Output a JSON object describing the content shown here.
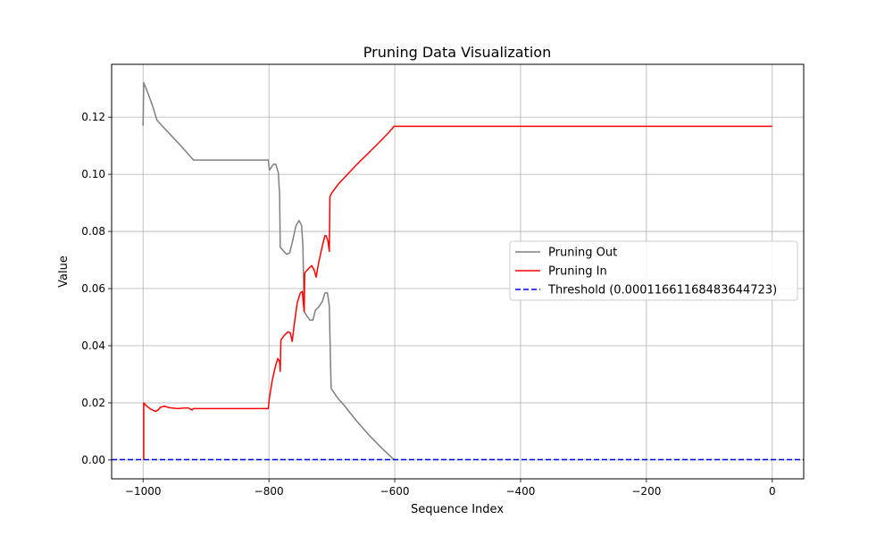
{
  "chart_data": {
    "type": "line",
    "title": "Pruning Data Visualization",
    "xlabel": "Sequence Index",
    "ylabel": "Value",
    "xlim": [
      -1050,
      50
    ],
    "ylim": [
      -0.0066,
      0.1385
    ],
    "x_ticks": [
      -1000,
      -800,
      -600,
      -400,
      -200,
      0
    ],
    "x_tick_labels": [
      "−1000",
      "−800",
      "−600",
      "−400",
      "−200",
      "0"
    ],
    "y_ticks": [
      0.0,
      0.02,
      0.04,
      0.06,
      0.08,
      0.1,
      0.12
    ],
    "y_tick_labels": [
      "0.00",
      "0.02",
      "0.04",
      "0.06",
      "0.08",
      "0.10",
      "0.12"
    ],
    "grid": true,
    "legend_position": "center-right",
    "series": [
      {
        "name": "Pruning Out",
        "color": "#808080",
        "dash": "solid",
        "points": [
          [
            -1000,
            0.117
          ],
          [
            -999,
            0.132
          ],
          [
            -995,
            0.13
          ],
          [
            -985,
            0.124
          ],
          [
            -978,
            0.119
          ],
          [
            -970,
            0.117
          ],
          [
            -955,
            0.1135
          ],
          [
            -940,
            0.11
          ],
          [
            -930,
            0.1075
          ],
          [
            -920,
            0.105
          ],
          [
            -900,
            0.105
          ],
          [
            -850,
            0.105
          ],
          [
            -801,
            0.105
          ],
          [
            -799,
            0.1015
          ],
          [
            -793,
            0.1035
          ],
          [
            -789,
            0.1035
          ],
          [
            -785,
            0.1005
          ],
          [
            -783,
            0.093
          ],
          [
            -782,
            0.0745
          ],
          [
            -778,
            0.0735
          ],
          [
            -772,
            0.072
          ],
          [
            -767,
            0.0725
          ],
          [
            -762,
            0.077
          ],
          [
            -757,
            0.082
          ],
          [
            -752,
            0.0838
          ],
          [
            -748,
            0.082
          ],
          [
            -746,
            0.075
          ],
          [
            -744,
            0.052
          ],
          [
            -740,
            0.0505
          ],
          [
            -735,
            0.049
          ],
          [
            -730,
            0.049
          ],
          [
            -726,
            0.0525
          ],
          [
            -721,
            0.0535
          ],
          [
            -715,
            0.0555
          ],
          [
            -711,
            0.0585
          ],
          [
            -707,
            0.0585
          ],
          [
            -704,
            0.054
          ],
          [
            -702,
            0.033
          ],
          [
            -701,
            0.025
          ],
          [
            -690,
            0.0215
          ],
          [
            -680,
            0.019
          ],
          [
            -660,
            0.0135
          ],
          [
            -640,
            0.0085
          ],
          [
            -620,
            0.004
          ],
          [
            -602,
            0.0003
          ],
          [
            -600,
            0.0
          ]
        ]
      },
      {
        "name": "Pruning In",
        "color": "#ff0000",
        "dash": "solid",
        "points": [
          [
            -999,
            0.0
          ],
          [
            -999,
            0.02
          ],
          [
            -995,
            0.019
          ],
          [
            -988,
            0.0178
          ],
          [
            -980,
            0.017
          ],
          [
            -976,
            0.0175
          ],
          [
            -972,
            0.0185
          ],
          [
            -966,
            0.0188
          ],
          [
            -958,
            0.0183
          ],
          [
            -945,
            0.018
          ],
          [
            -935,
            0.0182
          ],
          [
            -928,
            0.0182
          ],
          [
            -922,
            0.0175
          ],
          [
            -920,
            0.018
          ],
          [
            -900,
            0.018
          ],
          [
            -850,
            0.018
          ],
          [
            -801,
            0.018
          ],
          [
            -799,
            0.022
          ],
          [
            -795,
            0.0275
          ],
          [
            -790,
            0.0325
          ],
          [
            -786,
            0.0355
          ],
          [
            -783,
            0.0345
          ],
          [
            -782,
            0.031
          ],
          [
            -781,
            0.042
          ],
          [
            -776,
            0.0435
          ],
          [
            -770,
            0.0448
          ],
          [
            -766,
            0.0445
          ],
          [
            -763,
            0.0415
          ],
          [
            -760,
            0.047
          ],
          [
            -755,
            0.055
          ],
          [
            -750,
            0.0585
          ],
          [
            -747,
            0.059
          ],
          [
            -744,
            0.052
          ],
          [
            -743,
            0.0655
          ],
          [
            -737,
            0.067
          ],
          [
            -732,
            0.068
          ],
          [
            -728,
            0.0665
          ],
          [
            -725,
            0.064
          ],
          [
            -721,
            0.069
          ],
          [
            -715,
            0.075
          ],
          [
            -711,
            0.0785
          ],
          [
            -709,
            0.0785
          ],
          [
            -706,
            0.0765
          ],
          [
            -704,
            0.073
          ],
          [
            -703,
            0.0922
          ],
          [
            -700,
            0.0935
          ],
          [
            -690,
            0.0965
          ],
          [
            -660,
            0.1035
          ],
          [
            -630,
            0.11
          ],
          [
            -610,
            0.1145
          ],
          [
            -601,
            0.1168
          ],
          [
            -400,
            0.1168
          ],
          [
            -200,
            0.1168
          ],
          [
            0,
            0.1168
          ]
        ]
      },
      {
        "name": "Threshold (0.00011661168483644723)",
        "color": "#0000ff",
        "dash": "dashed",
        "points": [
          [
            -1050,
            0.00011661168483644723
          ],
          [
            50,
            0.00011661168483644723
          ]
        ]
      }
    ]
  }
}
